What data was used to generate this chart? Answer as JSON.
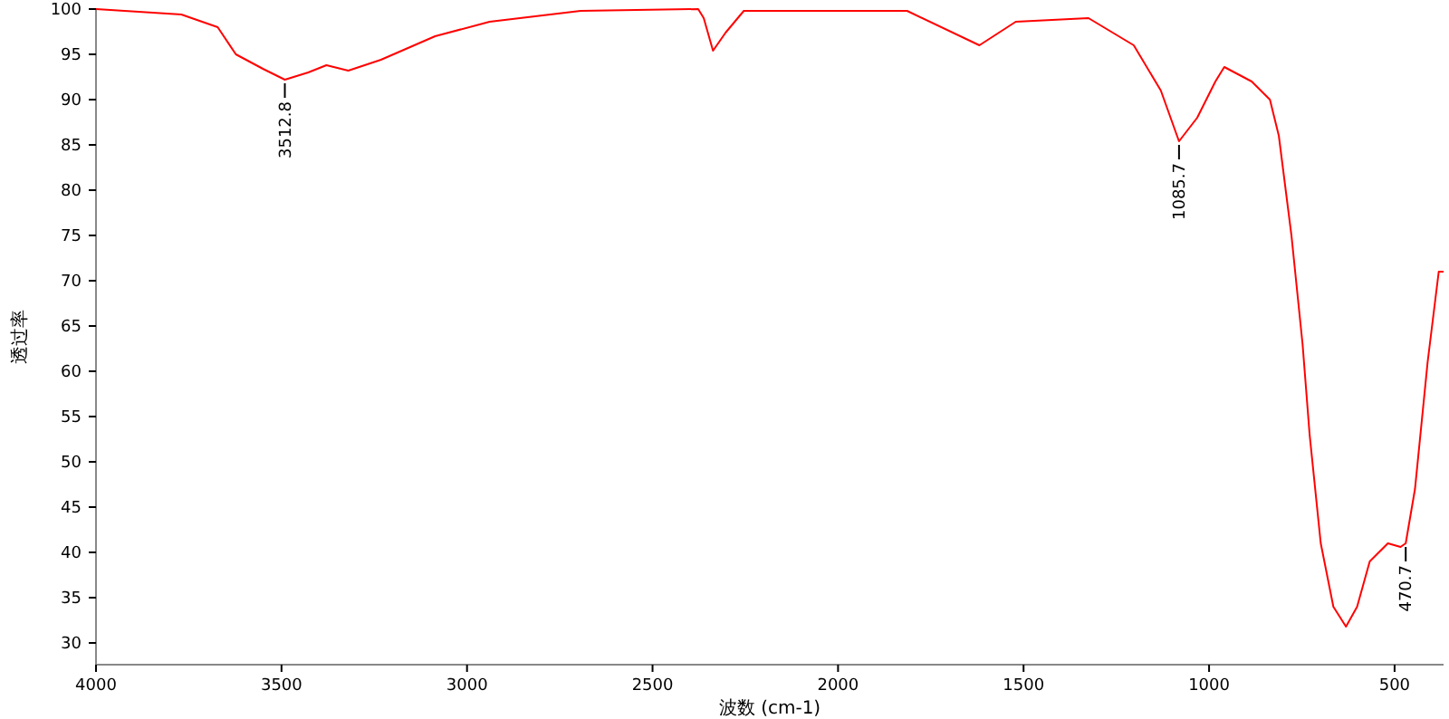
{
  "chart_data": {
    "type": "line",
    "xlabel": "波数 (cm-1)",
    "ylabel": "透过率",
    "xlim": [
      4000,
      368
    ],
    "ylim": [
      27.6,
      100
    ],
    "xticks": [
      4000,
      3500,
      3000,
      2500,
      2000,
      1500,
      1000,
      500
    ],
    "yticks": [
      30,
      35,
      40,
      45,
      50,
      55,
      60,
      65,
      70,
      75,
      80,
      85,
      90,
      95,
      100
    ],
    "grid": false,
    "marker": "none",
    "line_style": "solid",
    "series": [
      {
        "color": "#ff0000",
        "x": [
          4000,
          3770,
          3672,
          3623,
          3550,
          3491,
          3428,
          3379,
          3320,
          3232,
          3086,
          2939,
          2694,
          2377,
          2362,
          2337,
          2303,
          2254,
          1814,
          1619,
          1521,
          1325,
          1203,
          1130,
          1081,
          1032,
          983,
          959,
          885,
          836,
          812,
          778,
          748,
          729,
          699,
          665,
          631,
          601,
          567,
          518,
          484,
          470,
          445,
          411,
          381,
          368
        ],
        "values": [
          100,
          99.4,
          98,
          95,
          93.4,
          92.2,
          93,
          93.8,
          93.2,
          94.4,
          97,
          98.6,
          99.8,
          100,
          99,
          95.4,
          97.4,
          99.8,
          99.8,
          96,
          98.6,
          99,
          96,
          91,
          85.4,
          88,
          92,
          93.6,
          92,
          90,
          86,
          75,
          63,
          53,
          41,
          34,
          31.8,
          34,
          39,
          41,
          40.6,
          41,
          47,
          61,
          71,
          71
        ]
      }
    ],
    "annotations": [
      {
        "text": "3512.8",
        "x": 3491,
        "y": 92.2
      },
      {
        "text": "1085.7",
        "x": 1081,
        "y": 85.4
      },
      {
        "text": "470.7",
        "x": 470,
        "y": 41
      }
    ]
  }
}
